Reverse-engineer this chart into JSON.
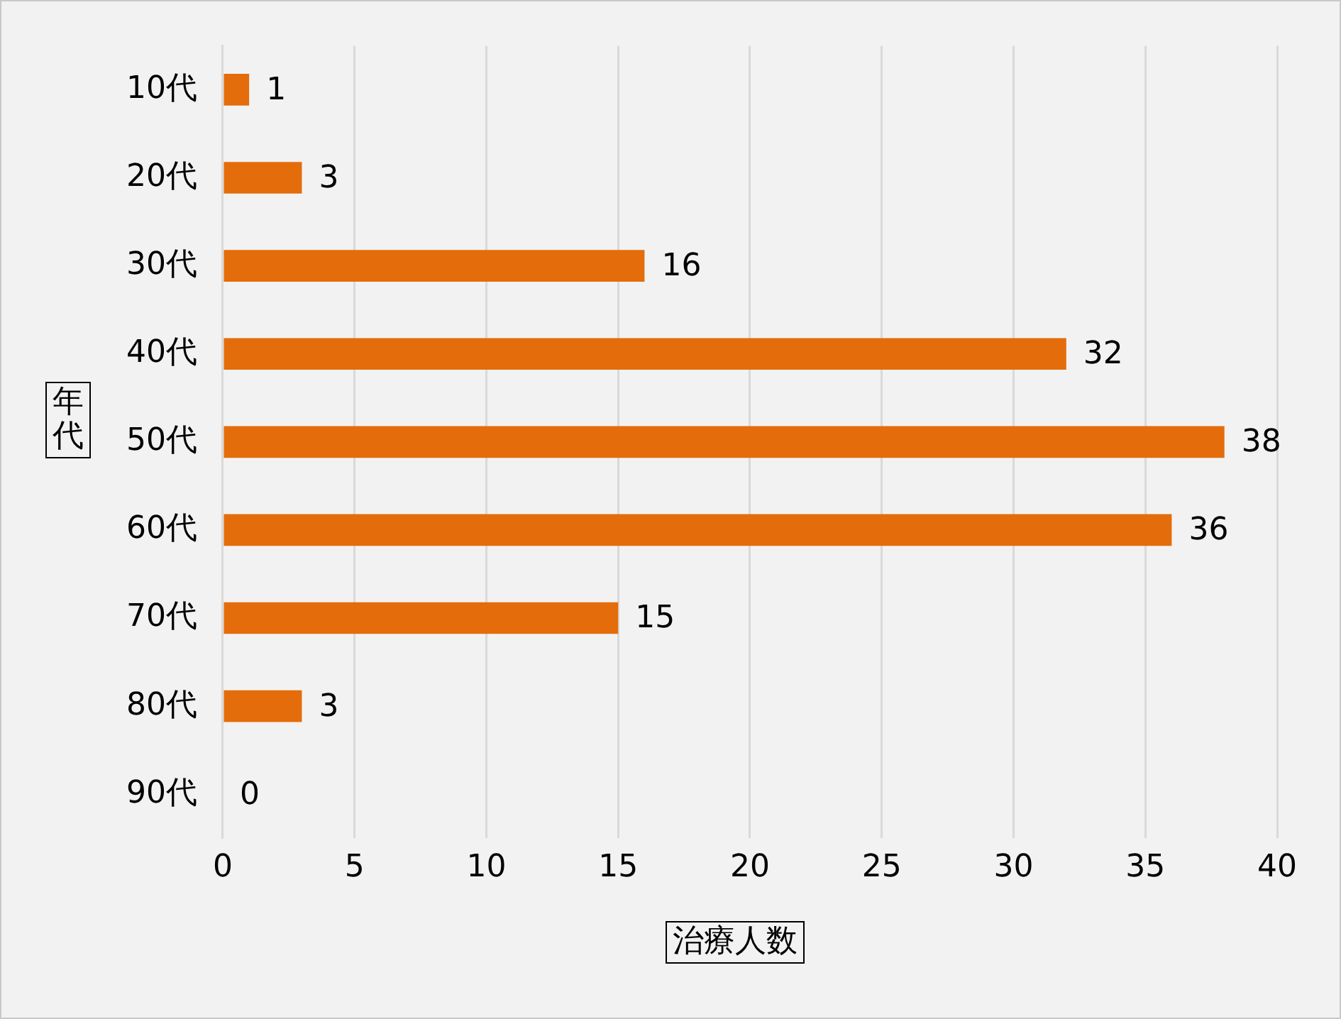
{
  "chart_data": {
    "type": "bar",
    "orientation": "horizontal",
    "xlabel": "治療人数",
    "ylabel": "年代",
    "categories": [
      "10代",
      "20代",
      "30代",
      "40代",
      "50代",
      "60代",
      "70代",
      "80代",
      "90代"
    ],
    "values": [
      1,
      3,
      16,
      32,
      38,
      36,
      15,
      3,
      0
    ],
    "color": "#e46c0a",
    "xlim": [
      0,
      40
    ],
    "xticks": [
      0,
      5,
      10,
      15,
      20,
      25,
      30,
      35,
      40
    ],
    "grid": "x",
    "data_labels": true,
    "legend": false
  }
}
